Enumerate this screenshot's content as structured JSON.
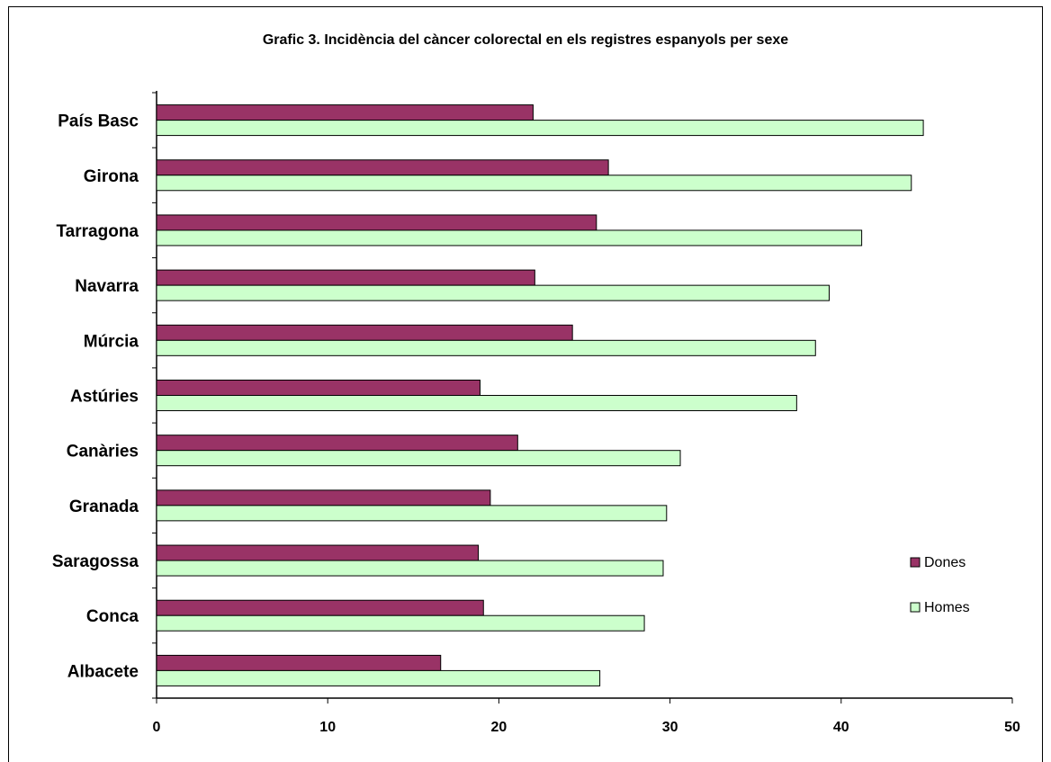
{
  "chart_data": {
    "type": "bar",
    "orientation": "horizontal",
    "title": "Grafic 3. Incidència del càncer colorectal en els registres espanyols per sexe",
    "xlabel": "",
    "ylabel": "",
    "categories": [
      "País Basc",
      "Girona",
      "Tarragona",
      "Navarra",
      "Múrcia",
      "Astúries",
      "Canàries",
      "Granada",
      "Saragossa",
      "Conca",
      "Albacete"
    ],
    "series": [
      {
        "name": "Dones",
        "color": "#993366",
        "values": [
          22.0,
          26.4,
          25.7,
          22.1,
          24.3,
          18.9,
          21.1,
          19.5,
          18.8,
          19.1,
          16.6
        ]
      },
      {
        "name": "Homes",
        "color": "#ccffcc",
        "values": [
          44.8,
          44.1,
          41.2,
          39.3,
          38.5,
          37.4,
          30.6,
          29.8,
          29.6,
          28.5,
          25.9
        ]
      }
    ],
    "xlim": [
      0,
      50
    ],
    "xticks": [
      "0",
      "10",
      "20",
      "30",
      "40",
      "50"
    ],
    "grid": false,
    "legend_position": "right"
  }
}
